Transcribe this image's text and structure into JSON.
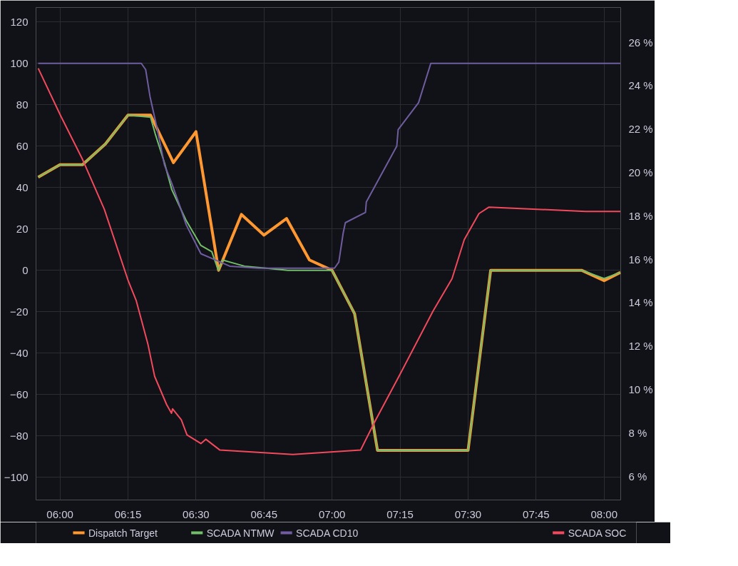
{
  "chart_data": {
    "type": "line",
    "xlim": [
      5.912,
      8.061
    ],
    "ylim": [
      -111,
      127
    ],
    "y2lim": [
      4.9,
      27.6
    ],
    "xticks": [
      {
        "value": 6,
        "label": "06:00"
      },
      {
        "value": 6.25,
        "label": "06:15"
      },
      {
        "value": 6.5,
        "label": "06:30"
      },
      {
        "value": 6.75,
        "label": "06:45"
      },
      {
        "value": 7,
        "label": "07:00"
      },
      {
        "value": 7.25,
        "label": "07:15"
      },
      {
        "value": 7.5,
        "label": "07:30"
      },
      {
        "value": 7.75,
        "label": "07:45"
      },
      {
        "value": 8,
        "label": "08:00"
      }
    ],
    "yticks": [
      -100,
      -80,
      -60,
      -40,
      -20,
      0,
      20,
      40,
      60,
      80,
      100,
      120
    ],
    "y2ticks": [
      {
        "value": 6,
        "label": "6 %"
      },
      {
        "value": 8,
        "label": "8 %"
      },
      {
        "value": 10,
        "label": "10 %"
      },
      {
        "value": 12,
        "label": "12 %"
      },
      {
        "value": 14,
        "label": "14 %"
      },
      {
        "value": 16,
        "label": "16 %"
      },
      {
        "value": 18,
        "label": "18 %"
      },
      {
        "value": 20,
        "label": "20 %"
      },
      {
        "value": 22,
        "label": "22 %"
      },
      {
        "value": 24,
        "label": "24 %"
      },
      {
        "value": 26,
        "label": "26 %"
      }
    ],
    "grid": true,
    "legend": "bottom",
    "marker": "none",
    "line_style": "solid",
    "series": [
      {
        "name": "Dispatch Target",
        "color": "#ff9830",
        "x": [
          5.92,
          6.0,
          6.083,
          6.167,
          6.25,
          6.333,
          6.417,
          6.5,
          6.583,
          6.667,
          6.75,
          6.833,
          6.917,
          7.0,
          7.083,
          7.167,
          7.5,
          7.583,
          7.917,
          8.0,
          8.06
        ],
        "values": [
          45,
          51,
          51,
          61,
          75,
          75,
          52,
          67,
          0,
          27,
          17,
          25,
          5,
          0,
          -21,
          -87,
          -87,
          0,
          0,
          -5,
          -1
        ]
      },
      {
        "name": "SCADA NTMW",
        "color": "#73bf69",
        "x": [
          5.92,
          6.0,
          6.083,
          6.167,
          6.25,
          6.333,
          6.35,
          6.384,
          6.411,
          6.464,
          6.518,
          6.558,
          6.582,
          6.598,
          6.624,
          6.678,
          6.758,
          6.838,
          7.0,
          7.083,
          7.167,
          7.5,
          7.583,
          7.917,
          8.0,
          8.06
        ],
        "values": [
          45,
          51,
          51,
          61,
          75,
          74,
          66,
          52,
          39,
          24,
          12,
          9,
          0,
          5,
          4,
          2,
          1,
          0,
          0,
          -21,
          -87,
          -87,
          0,
          0,
          -4,
          -1
        ]
      },
      {
        "name": "SCADA CD10",
        "color": "#705da0",
        "x": [
          5.92,
          6.299,
          6.315,
          6.331,
          6.358,
          6.384,
          6.411,
          6.438,
          6.464,
          6.491,
          6.518,
          6.571,
          6.624,
          6.731,
          6.891,
          7.009,
          7.025,
          7.041,
          7.049,
          7.123,
          7.126,
          7.238,
          7.243,
          7.318,
          7.363,
          8.06
        ],
        "values": [
          100,
          100,
          97,
          84,
          68,
          51,
          42,
          32,
          22,
          15,
          8,
          5,
          2,
          1,
          1,
          1,
          4,
          18,
          23,
          28,
          33,
          60,
          68,
          81,
          100,
          100
        ]
      },
      {
        "name": "SCADA SOC",
        "color": "#f2495c",
        "axis": "y2",
        "x": [
          5.92,
          6.003,
          6.083,
          6.163,
          6.251,
          6.28,
          6.323,
          6.348,
          6.392,
          6.41,
          6.414,
          6.446,
          6.467,
          6.518,
          6.536,
          6.588,
          6.856,
          7.105,
          7.161,
          7.246,
          7.371,
          7.441,
          7.486,
          7.54,
          7.577,
          7.932,
          8.06
        ],
        "values": [
          24.8,
          22.6,
          20.6,
          18.3,
          15.0,
          14.1,
          12.1,
          10.6,
          9.3,
          8.9,
          9.1,
          8.6,
          7.9,
          7.5,
          7.7,
          7.2,
          7.0,
          7.2,
          8.6,
          10.6,
          13.6,
          15.1,
          16.9,
          18.1,
          18.4,
          18.2,
          18.2
        ]
      }
    ]
  }
}
